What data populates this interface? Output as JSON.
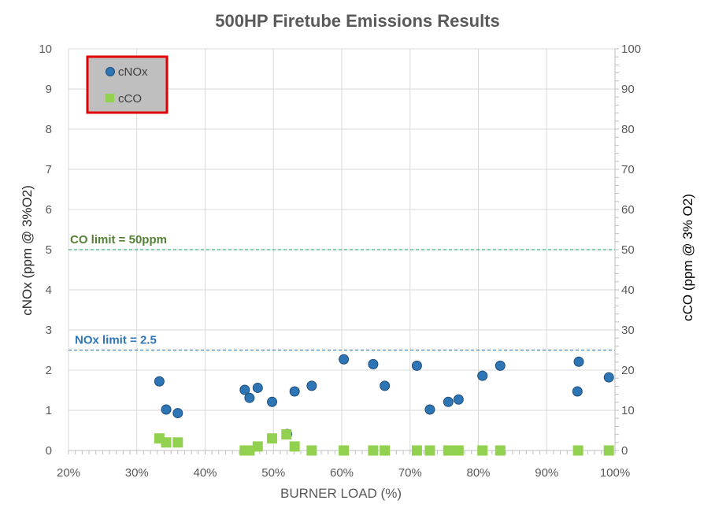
{
  "chart_data": {
    "type": "scatter",
    "title": "500HP Firetube Emissions Results",
    "xlabel": "BURNER LOAD (%)",
    "ylabel_left": "cNOx (ppm @ 3%O2)",
    "ylabel_right": "cCO (ppm @ 3% O2)",
    "xlim": [
      20,
      100
    ],
    "ylim_left": [
      0,
      10
    ],
    "ylim_right": [
      0,
      100
    ],
    "x_ticks": [
      "20%",
      "30%",
      "40%",
      "50%",
      "60%",
      "70%",
      "80%",
      "90%",
      "100%"
    ],
    "y_ticks_left": [
      "0",
      "1",
      "2",
      "3",
      "4",
      "5",
      "6",
      "7",
      "8",
      "9",
      "10"
    ],
    "y_ticks_right": [
      "0",
      "10",
      "20",
      "30",
      "40",
      "50",
      "60",
      "70",
      "80",
      "90",
      "100"
    ],
    "grid": true,
    "legend_position": "top-left",
    "series": [
      {
        "name": "cNOx",
        "axis": "left",
        "marker": "circle",
        "color": "#2E75B6",
        "points": [
          [
            33.3,
            1.72
          ],
          [
            34.3,
            1.02
          ],
          [
            36.0,
            0.93
          ],
          [
            45.8,
            1.51
          ],
          [
            46.5,
            1.31
          ],
          [
            47.7,
            1.56
          ],
          [
            49.8,
            1.21
          ],
          [
            52.0,
            0.41
          ],
          [
            53.1,
            1.47
          ],
          [
            55.6,
            1.61
          ],
          [
            60.3,
            2.27
          ],
          [
            64.6,
            2.15
          ],
          [
            66.3,
            1.61
          ],
          [
            71.0,
            2.11
          ],
          [
            72.9,
            1.02
          ],
          [
            75.6,
            1.21
          ],
          [
            77.1,
            1.27
          ],
          [
            80.6,
            1.86
          ],
          [
            83.2,
            2.11
          ],
          [
            94.5,
            1.47
          ],
          [
            94.7,
            2.21
          ],
          [
            99.1,
            1.82
          ]
        ]
      },
      {
        "name": "cCO",
        "axis": "right",
        "marker": "square",
        "color": "#92D050",
        "points": [
          [
            33.3,
            3
          ],
          [
            34.3,
            2
          ],
          [
            36.0,
            2
          ],
          [
            45.8,
            0
          ],
          [
            46.5,
            0
          ],
          [
            47.7,
            1
          ],
          [
            49.8,
            3
          ],
          [
            51.9,
            4
          ],
          [
            53.1,
            1
          ],
          [
            55.6,
            0
          ],
          [
            60.3,
            0
          ],
          [
            64.6,
            0
          ],
          [
            66.3,
            0
          ],
          [
            71.0,
            0
          ],
          [
            72.9,
            0
          ],
          [
            75.6,
            0
          ],
          [
            76.3,
            0
          ],
          [
            77.1,
            0
          ],
          [
            80.6,
            0
          ],
          [
            83.2,
            0
          ],
          [
            94.6,
            0
          ],
          [
            99.1,
            0
          ]
        ]
      }
    ],
    "reference_lines": [
      {
        "label": "CO limit = 50ppm",
        "axis": "right",
        "value": 50,
        "color": "#0F9D58",
        "label_color": "#548235"
      },
      {
        "label": "NOx limit = 2.5",
        "axis": "left",
        "value": 2.5,
        "color": "#2E75B6",
        "label_color": "#2E75B6"
      }
    ],
    "legend": {
      "entries": [
        "cNOx",
        "cCO"
      ],
      "background": "#BFBFBF",
      "border_color": "#E00000"
    }
  }
}
